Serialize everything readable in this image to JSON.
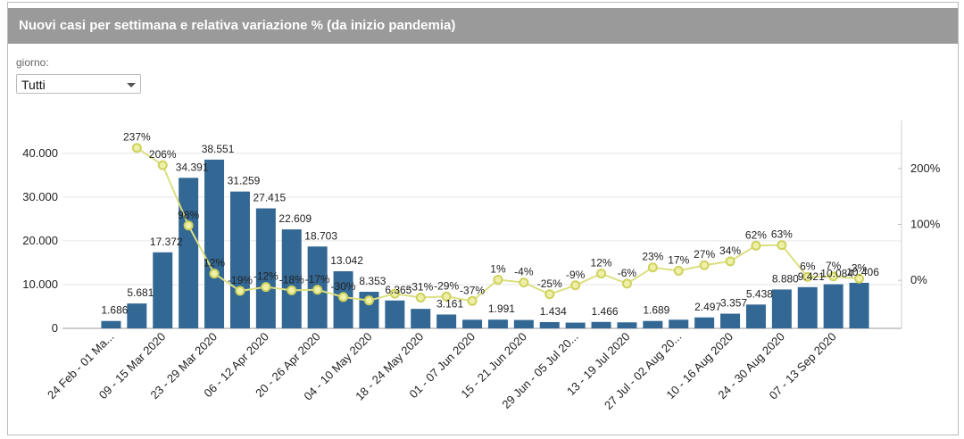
{
  "header": {
    "title": "Nuovi casi per settimana e relativa variazione % (da inizio pandemia)"
  },
  "filter": {
    "label": "giorno:",
    "value": "Tutti"
  },
  "chart_data": {
    "type": "bar",
    "categories": [
      "24 Feb - 01 Ma...",
      null,
      "09 - 15 Mar 2020",
      null,
      "23 - 29 Mar 2020",
      null,
      "06 - 12 Apr 2020",
      null,
      "20 - 26 Apr 2020",
      null,
      "04 - 10 May 2020",
      null,
      "18 - 24 May 2020",
      null,
      "01 - 07 Jun 2020",
      null,
      "15 - 21 Jun 2020",
      null,
      "29 Jun - 05 Jul 20...",
      null,
      "13 - 19 Jul 2020",
      null,
      "27 Jul - 02 Aug 20...",
      null,
      "10 - 16 Aug 2020",
      null,
      "24 - 30 Aug 2020",
      null,
      "07 - 13 Sep 2020",
      null
    ],
    "series": [
      {
        "type": "bar",
        "color": "#336794",
        "values": [
          1686,
          5681,
          17372,
          34391,
          38551,
          31259,
          27415,
          22609,
          18703,
          13042,
          8353,
          6365,
          4450,
          3161,
          1970,
          1991,
          1910,
          1434,
          1310,
          1466,
          1370,
          1689,
          1970,
          2497,
          3357,
          5438,
          8880,
          9421,
          10084,
          10406
        ],
        "value_labels": [
          "1.686",
          "5.681",
          "17.372",
          "34.391",
          "38.551",
          "31.259",
          "27.415",
          "22.609",
          "18.703",
          "13.042",
          "8.353",
          "6.365",
          null,
          "3.161",
          null,
          "1.991",
          null,
          "1.434",
          null,
          "1.466",
          null,
          "1.689",
          null,
          "2.497",
          "3.357",
          "5.438",
          "8.880",
          "9.421",
          "10.084",
          "10.406"
        ]
      },
      {
        "type": "line",
        "axis": "y2",
        "color": "#dcdf80",
        "values": [
          null,
          237,
          206,
          98,
          12,
          -19,
          -12,
          -18,
          -17,
          -30,
          -36,
          -24,
          -31,
          -29,
          -37,
          1,
          -4,
          -25,
          -9,
          12,
          -6,
          23,
          17,
          27,
          34,
          62,
          63,
          6,
          7,
          3
        ],
        "value_labels": [
          null,
          "237%",
          "206%",
          "98%",
          "12%",
          "-19%",
          "-12%",
          "-18%",
          "-17%",
          "-30%",
          null,
          null,
          "-31%",
          "-29%",
          "-37%",
          "1%",
          "-4%",
          "-25%",
          "-9%",
          "12%",
          "-6%",
          "23%",
          "17%",
          "27%",
          "34%",
          "62%",
          "63%",
          "6%",
          "7%",
          "3%"
        ]
      }
    ],
    "ylim": [
      0,
      47500
    ],
    "yticks": [
      {
        "value": 0,
        "label": "0"
      },
      {
        "value": 10000,
        "label": "10.000"
      },
      {
        "value": 20000,
        "label": "20.000"
      },
      {
        "value": 30000,
        "label": "30.000"
      },
      {
        "value": 40000,
        "label": "40.000"
      }
    ],
    "y2lim": [
      -86,
      286
    ],
    "y2ticks": [
      {
        "value": 0,
        "label": "0%"
      },
      {
        "value": 100,
        "label": "100%"
      },
      {
        "value": 200,
        "label": "200%"
      }
    ],
    "grid": true
  }
}
